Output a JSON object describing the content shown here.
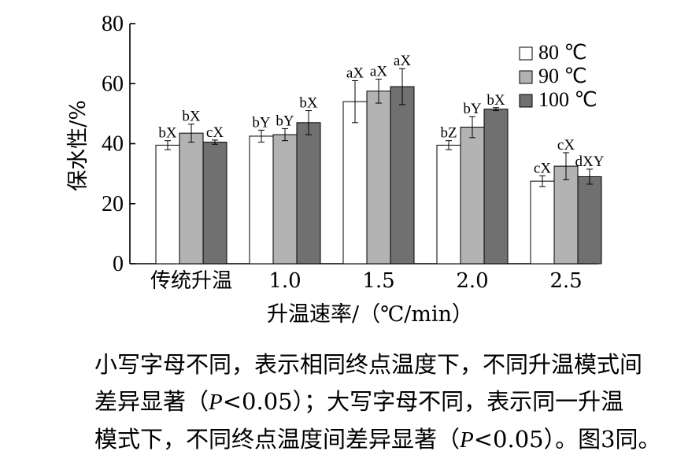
{
  "chart_data": {
    "type": "bar",
    "categories": [
      "传统升温",
      "1.0",
      "1.5",
      "2.0",
      "2.5"
    ],
    "series": [
      {
        "name": "80 ℃",
        "color": "#ffffff",
        "values": [
          39.5,
          42.5,
          54.0,
          39.5,
          27.5
        ],
        "errors": [
          1.5,
          2.0,
          7.0,
          1.5,
          1.8
        ],
        "labels": [
          "bX",
          "bY",
          "aX",
          "bZ",
          "cX"
        ]
      },
      {
        "name": "90 ℃",
        "color": "#b3b3b3",
        "values": [
          43.5,
          43.0,
          57.5,
          45.5,
          32.5
        ],
        "errors": [
          3.0,
          2.0,
          4.0,
          3.5,
          4.5
        ],
        "labels": [
          "bX",
          "bY",
          "aX",
          "bY",
          "cX"
        ]
      },
      {
        "name": "100 ℃",
        "color": "#707070",
        "values": [
          40.5,
          47.0,
          59.0,
          51.5,
          29.0
        ],
        "errors": [
          0.7,
          4.0,
          6.0,
          0.5,
          2.5
        ],
        "labels": [
          "cX",
          "bX",
          "aX",
          "bX",
          "dXY"
        ]
      }
    ],
    "xlabel": "升温速率/（℃/min）",
    "ylabel": "保水性/%",
    "ylim": [
      0,
      80
    ],
    "yticks": [
      "0",
      "20",
      "40",
      "60",
      "80"
    ],
    "grid": false,
    "legend": "top-right"
  },
  "note": {
    "line1": "小写字母不同，表示相同终点温度下，不同升温模式间",
    "line2_a": "差异显著（",
    "line2_p": "P",
    "line2_b": "<0.05）；大写字母不同，表示同一升温",
    "line3_a": "模式下，不同终点温度间差异显著（",
    "line3_p": "P",
    "line3_b": "<0.05）。图3同。"
  }
}
